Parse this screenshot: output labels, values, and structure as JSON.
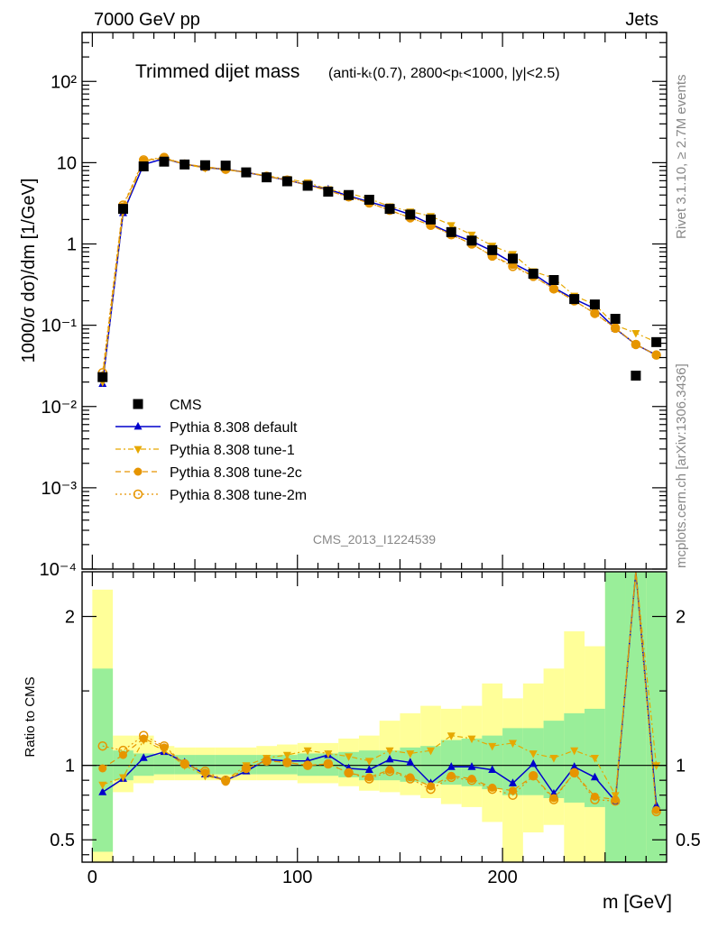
{
  "header": {
    "energy_label": "7000 GeV pp",
    "process_label": "Jets"
  },
  "side_text": {
    "rivet": "Rivet 3.1.10, ≥ 2.7M events",
    "mcplots": "mcplots.cern.ch [arXiv:1306.3436]"
  },
  "chart_data": [
    {
      "type": "line",
      "title": "Trimmed dijet mass",
      "title_suffix": "(anti-kₜ(0.7), 2800<pₜ<1000, |y|<2.5)",
      "analysis_id": "CMS_2013_I1224539",
      "ylabel": "1000/σ dσ)/dm [1/GeV]",
      "xlabel": "",
      "yscale": "log",
      "ylim": [
        0.0001,
        400
      ],
      "xlim": [
        -5,
        280
      ],
      "y_tick_labels": [
        "10⁻⁴",
        "10⁻³",
        "10⁻²",
        "10⁻¹",
        "1",
        "10",
        "10²"
      ],
      "legend_position": "left-middle",
      "x": [
        5,
        15,
        25,
        35,
        45,
        55,
        65,
        75,
        85,
        95,
        105,
        115,
        125,
        135,
        145,
        155,
        165,
        175,
        185,
        195,
        205,
        215,
        225,
        235,
        245,
        255,
        265,
        275
      ],
      "series": [
        {
          "name": "CMS",
          "color": "#000000",
          "marker": "square",
          "values": [
            0.023,
            2.7,
            9.0,
            10.3,
            9.5,
            9.3,
            9.2,
            7.6,
            6.6,
            5.9,
            5.2,
            4.4,
            4.0,
            3.5,
            2.7,
            2.3,
            2.0,
            1.4,
            1.1,
            0.84,
            0.66,
            0.43,
            0.36,
            0.21,
            0.18,
            0.12,
            0.024,
            0.062
          ]
        },
        {
          "name": "Pythia 8.308 default",
          "color": "#0000cc",
          "marker": "triangle-up",
          "values": [
            0.019,
            2.4,
            9.5,
            11.2,
            9.6,
            8.7,
            8.3,
            7.6,
            6.8,
            6.1,
            5.3,
            4.7,
            3.9,
            3.3,
            2.8,
            2.3,
            1.75,
            1.35,
            1.08,
            0.82,
            0.58,
            0.43,
            0.29,
            0.21,
            0.16,
            0.091,
            0.058,
            0.043
          ]
        },
        {
          "name": "Pythia 8.308 tune-1",
          "color": "#e6a800",
          "marker": "triangle-down",
          "values": [
            0.02,
            2.5,
            10.5,
            11.3,
            9.5,
            8.6,
            8.2,
            7.6,
            6.9,
            6.3,
            5.7,
            4.7,
            4.2,
            3.6,
            2.9,
            2.5,
            2.2,
            1.7,
            1.3,
            0.95,
            0.75,
            0.46,
            0.38,
            0.23,
            0.18,
            0.1,
            0.08,
            0.062
          ]
        },
        {
          "name": "Pythia 8.308 tune-2c",
          "color": "#e69500",
          "marker": "circle",
          "values": [
            0.024,
            2.9,
            10.6,
            11.5,
            9.6,
            8.9,
            8.3,
            7.6,
            6.8,
            6.1,
            5.3,
            4.5,
            3.8,
            3.2,
            2.6,
            2.1,
            1.7,
            1.3,
            1.0,
            0.71,
            0.55,
            0.4,
            0.28,
            0.2,
            0.14,
            0.092,
            0.058,
            0.043
          ]
        },
        {
          "name": "Pythia 8.308 tune-2m",
          "color": "#e69500",
          "marker": "open-circle",
          "values": [
            0.026,
            3.0,
            10.8,
            11.6,
            9.6,
            8.9,
            8.3,
            7.6,
            6.8,
            6.1,
            5.3,
            4.5,
            3.8,
            3.2,
            2.6,
            2.1,
            1.7,
            1.3,
            1.0,
            0.71,
            0.53,
            0.4,
            0.28,
            0.2,
            0.14,
            0.092,
            0.058,
            0.043
          ]
        }
      ]
    },
    {
      "type": "line",
      "title": "",
      "ylabel": "Ratio to CMS",
      "xlabel": "m [GeV]",
      "ylim": [
        0.35,
        2.3
      ],
      "xlim": [
        -5,
        280
      ],
      "x_ticks": [
        0,
        100,
        200
      ],
      "y_ticks": [
        0.5,
        1,
        2
      ],
      "x": [
        5,
        15,
        25,
        35,
        45,
        55,
        65,
        75,
        85,
        95,
        105,
        115,
        125,
        135,
        145,
        155,
        165,
        175,
        185,
        195,
        205,
        215,
        225,
        235,
        245,
        255,
        265,
        275
      ],
      "band_edges": [
        0,
        10,
        20,
        30,
        40,
        50,
        60,
        70,
        80,
        90,
        100,
        110,
        120,
        130,
        140,
        150,
        160,
        170,
        180,
        190,
        200,
        210,
        220,
        230,
        240,
        250,
        260,
        270,
        280
      ],
      "band_inner": [
        [
          0.42,
          1.65
        ],
        [
          0.9,
          1.1
        ],
        [
          0.93,
          1.08
        ],
        [
          0.94,
          1.07
        ],
        [
          0.94,
          1.07
        ],
        [
          0.94,
          1.07
        ],
        [
          0.94,
          1.07
        ],
        [
          0.94,
          1.07
        ],
        [
          0.94,
          1.07
        ],
        [
          0.94,
          1.07
        ],
        [
          0.93,
          1.08
        ],
        [
          0.93,
          1.08
        ],
        [
          0.92,
          1.09
        ],
        [
          0.9,
          1.1
        ],
        [
          0.9,
          1.1
        ],
        [
          0.89,
          1.12
        ],
        [
          0.88,
          1.13
        ],
        [
          0.87,
          1.17
        ],
        [
          0.86,
          1.18
        ],
        [
          0.84,
          1.2
        ],
        [
          0.8,
          1.25
        ],
        [
          0.8,
          1.25
        ],
        [
          0.78,
          1.3
        ],
        [
          0.75,
          1.35
        ],
        [
          0.72,
          1.38
        ],
        [
          0.35,
          2.3
        ],
        [
          0.35,
          2.3
        ],
        [
          0.35,
          2.3
        ]
      ],
      "band_outer": [
        [
          0.35,
          2.18
        ],
        [
          0.82,
          1.2
        ],
        [
          0.88,
          1.2
        ],
        [
          0.9,
          1.13
        ],
        [
          0.9,
          1.12
        ],
        [
          0.9,
          1.12
        ],
        [
          0.9,
          1.12
        ],
        [
          0.9,
          1.12
        ],
        [
          0.9,
          1.13
        ],
        [
          0.9,
          1.14
        ],
        [
          0.88,
          1.15
        ],
        [
          0.88,
          1.15
        ],
        [
          0.86,
          1.18
        ],
        [
          0.83,
          1.2
        ],
        [
          0.82,
          1.3
        ],
        [
          0.8,
          1.35
        ],
        [
          0.78,
          1.4
        ],
        [
          0.74,
          1.38
        ],
        [
          0.72,
          1.4
        ],
        [
          0.62,
          1.55
        ],
        [
          0.35,
          1.45
        ],
        [
          0.55,
          1.55
        ],
        [
          0.6,
          1.65
        ],
        [
          0.35,
          1.9
        ],
        [
          0.35,
          1.8
        ],
        [
          0.35,
          2.3
        ],
        [
          0.35,
          2.3
        ],
        [
          0.35,
          2.3
        ]
      ],
      "series": [
        {
          "name": "Pythia 8.308 default",
          "color": "#0000cc",
          "values": [
            0.82,
            0.91,
            1.05,
            1.09,
            1.02,
            0.94,
            0.9,
            0.96,
            1.04,
            1.03,
            1.03,
            1.07,
            0.98,
            0.97,
            1.04,
            1.02,
            0.88,
            0.99,
            0.99,
            0.97,
            0.88,
            1.01,
            0.81,
            0.99,
            0.92,
            0.76,
            2.35,
            0.73
          ]
        },
        {
          "name": "Pythia 8.308 tune-1",
          "color": "#e6a800",
          "values": [
            0.87,
            0.92,
            1.17,
            1.1,
            1.0,
            0.93,
            0.9,
            1.0,
            1.05,
            1.07,
            1.1,
            1.08,
            1.06,
            1.03,
            1.1,
            1.08,
            1.1,
            1.2,
            1.18,
            1.13,
            1.15,
            1.08,
            1.05,
            1.1,
            1.05,
            0.8,
            2.35,
            1.0
          ]
        },
        {
          "name": "Pythia 8.308 tune-2c",
          "color": "#e69500",
          "values": [
            0.98,
            1.07,
            1.18,
            1.12,
            1.01,
            0.95,
            0.89,
            0.98,
            1.03,
            1.02,
            1.0,
            1.01,
            0.95,
            0.92,
            0.97,
            0.92,
            0.86,
            0.93,
            0.91,
            0.85,
            0.83,
            0.93,
            0.78,
            0.95,
            0.79,
            0.77,
            2.35,
            0.7
          ]
        },
        {
          "name": "Pythia 8.308 tune-2m",
          "color": "#e69500",
          "values": [
            1.13,
            1.1,
            1.2,
            1.13,
            1.01,
            0.96,
            0.9,
            0.98,
            1.03,
            1.02,
            1.0,
            1.01,
            0.95,
            0.91,
            0.96,
            0.91,
            0.84,
            0.92,
            0.9,
            0.84,
            0.8,
            0.93,
            0.77,
            0.95,
            0.77,
            0.76,
            2.35,
            0.69
          ]
        }
      ]
    }
  ]
}
